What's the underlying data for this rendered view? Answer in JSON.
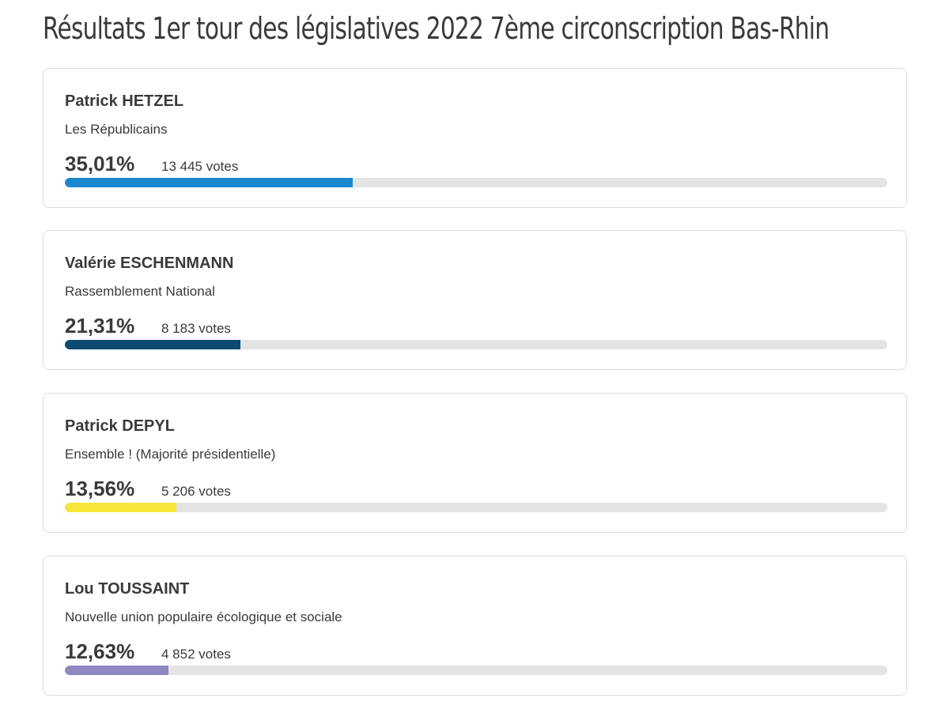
{
  "chart_data": {
    "type": "bar",
    "title": "Résultats 1er tour des législatives 2022 7ème circonscription Bas-Rhin",
    "candidates": [
      {
        "name": "Patrick HETZEL",
        "party": "Les Républicains",
        "percent": 35.01,
        "percent_label": "35,01%",
        "votes_label": "13 445 votes",
        "color": "#1b87cf"
      },
      {
        "name": "Valérie ESCHENMANN",
        "party": "Rassemblement National",
        "percent": 21.31,
        "percent_label": "21,31%",
        "votes_label": "8 183 votes",
        "color": "#0c4a72"
      },
      {
        "name": "Patrick DEPYL",
        "party": "Ensemble ! (Majorité présidentielle)",
        "percent": 13.56,
        "percent_label": "13,56%",
        "votes_label": "5 206 votes",
        "color": "#f5e637"
      },
      {
        "name": "Lou TOUSSAINT",
        "party": "Nouvelle union populaire écologique et sociale",
        "percent": 12.63,
        "percent_label": "12,63%",
        "votes_label": "4 852 votes",
        "color": "#8d88c2"
      }
    ],
    "scale_max": 100
  }
}
